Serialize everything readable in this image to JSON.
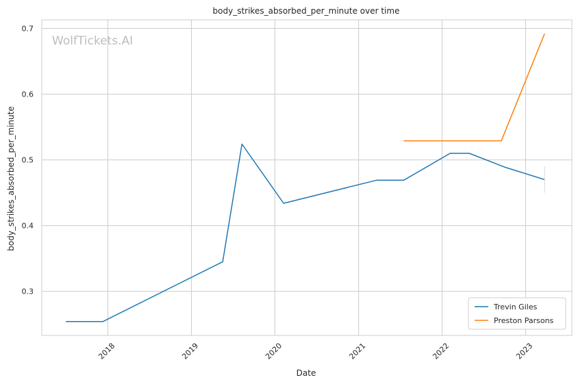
{
  "watermark": "WolfTickets.AI",
  "chart_data": {
    "type": "line",
    "title": "body_strikes_absorbed_per_minute over time",
    "xlabel": "Date",
    "ylabel": "body_strikes_absorbed_per_minute",
    "x_ticks": [
      "2018",
      "2019",
      "2020",
      "2021",
      "2022",
      "2023"
    ],
    "y_ticks": [
      "0.3",
      "0.4",
      "0.5",
      "0.6",
      "0.7"
    ],
    "xlim": [
      "2017-03-18",
      "2023-07-22"
    ],
    "ylim": [
      0.233,
      0.713
    ],
    "grid": true,
    "legend_position": "bottom-right",
    "series": [
      {
        "name": "Trevin Giles",
        "color": "#1f77b4",
        "points": [
          {
            "x": "2017-07-01",
            "y": 0.254
          },
          {
            "x": "2017-12-10",
            "y": 0.254
          },
          {
            "x": "2019-05-18",
            "y": 0.345
          },
          {
            "x": "2019-08-10",
            "y": 0.524
          },
          {
            "x": "2020-02-08",
            "y": 0.434
          },
          {
            "x": "2021-03-20",
            "y": 0.469
          },
          {
            "x": "2021-07-17",
            "y": 0.469
          },
          {
            "x": "2022-02-05",
            "y": 0.51
          },
          {
            "x": "2022-04-30",
            "y": 0.51
          },
          {
            "x": "2022-10-01",
            "y": 0.489
          },
          {
            "x": "2023-03-25",
            "y": 0.47
          }
        ]
      },
      {
        "name": "Preston Parsons",
        "color": "#ff7f0e",
        "points": [
          {
            "x": "2021-07-17",
            "y": 0.529
          },
          {
            "x": "2022-09-17",
            "y": 0.529
          },
          {
            "x": "2023-03-25",
            "y": 0.692
          }
        ]
      }
    ]
  }
}
